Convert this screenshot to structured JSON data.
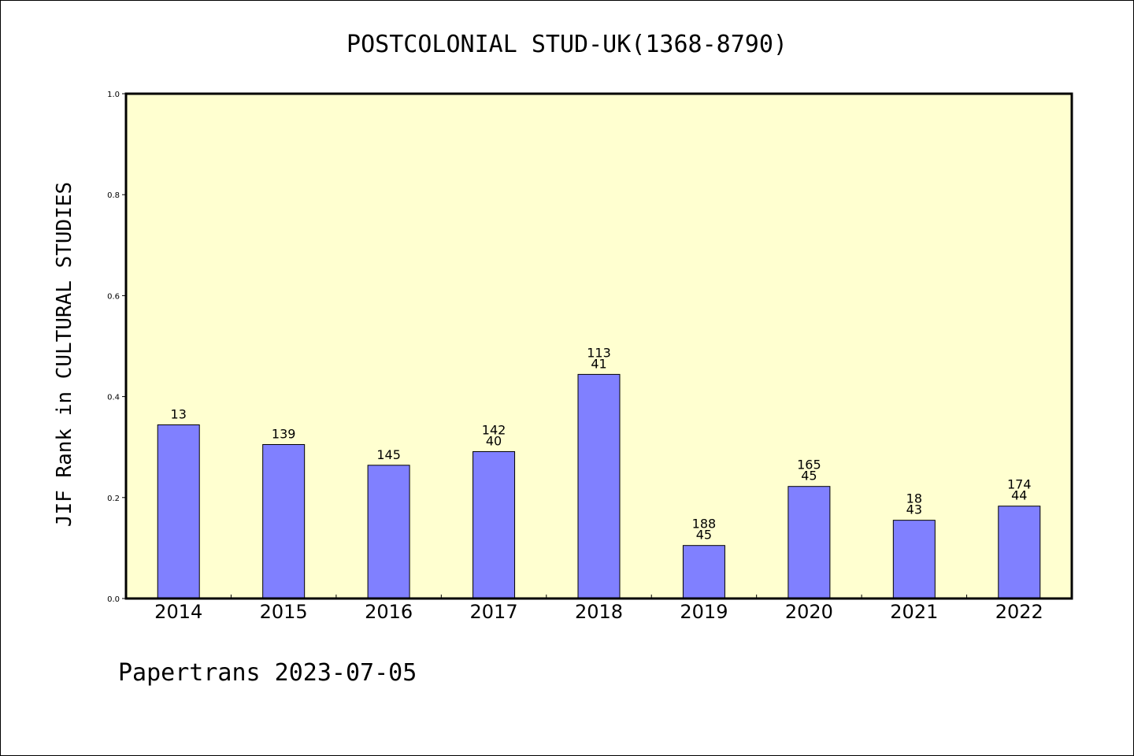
{
  "chart_data": {
    "type": "bar",
    "title": "POSTCOLONIAL STUD-UK(1368-8790)",
    "ylabel": "JIF Rank in CULTURAL STUDIES",
    "xlabel": "",
    "ylim": [
      0,
      1.0
    ],
    "yticks": [
      "0.0",
      "0.2",
      "0.4",
      "0.6",
      "0.8",
      "1.0"
    ],
    "categories": [
      "2014",
      "2015",
      "2016",
      "2017",
      "2018",
      "2019",
      "2020",
      "2021",
      "2022"
    ],
    "values": [
      0.344,
      0.305,
      0.264,
      0.291,
      0.444,
      0.105,
      0.222,
      0.155,
      0.183
    ],
    "labels": [
      [
        "13"
      ],
      [
        "139"
      ],
      [
        "145"
      ],
      [
        "142",
        "40"
      ],
      [
        "113",
        "41"
      ],
      [
        "188",
        "45"
      ],
      [
        "165",
        "45"
      ],
      [
        "18",
        "43"
      ],
      [
        "174",
        "44"
      ]
    ],
    "grid": false,
    "colors": {
      "bar": "#8080ff",
      "plot_bg": "#ffffd0"
    }
  },
  "footer": "Papertrans 2023-07-05"
}
